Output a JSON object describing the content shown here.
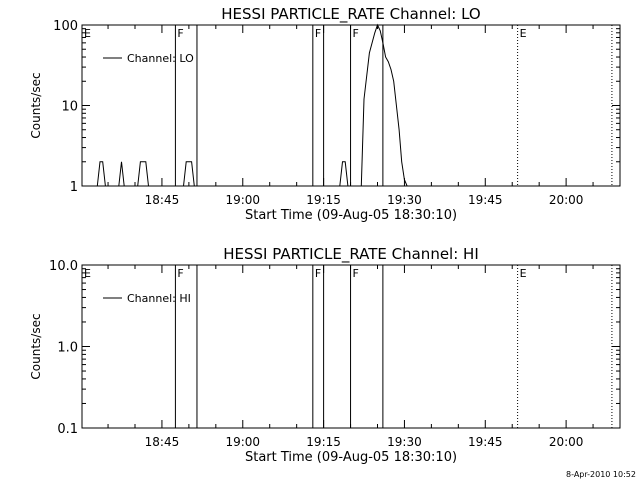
{
  "footer": {
    "timestamp": "8-Apr-2010 10:52"
  },
  "chart_data": [
    {
      "type": "line",
      "title": "HESSI PARTICLE_RATE Channel: LO",
      "xlabel": "Start Time (09-Aug-05 18:30:10)",
      "ylabel": "Counts/sec",
      "xlim": [
        "18:30:10",
        "20:10:00"
      ],
      "ylim": [
        1,
        100
      ],
      "log_y": true,
      "x_ticks": [
        "18:45",
        "19:00",
        "19:15",
        "19:30",
        "19:45",
        "20:00"
      ],
      "y_ticks": [
        "1",
        "10",
        "100"
      ],
      "legend": {
        "position": "top-left",
        "entries": [
          "Channel: LO"
        ]
      },
      "grid": false,
      "series": [
        {
          "name": "Channel: LO",
          "x": [
            "18:30:10",
            "18:33:00",
            "18:33:30",
            "18:34:00",
            "18:34:30",
            "18:35:00",
            "18:37:00",
            "18:37:30",
            "18:38:00",
            "18:40:30",
            "18:41:00",
            "18:42:00",
            "18:42:30",
            "18:44:00",
            "18:49:00",
            "18:49:30",
            "18:50:30",
            "18:51:00",
            "19:18:00",
            "19:18:30",
            "19:19:00",
            "19:19:30",
            "19:22:00",
            "19:22:30",
            "19:23:30",
            "19:24:30",
            "19:25:00",
            "19:25:30",
            "19:26:00",
            "19:26:30",
            "19:27:00",
            "19:27:30",
            "19:28:00",
            "19:28:30",
            "19:29:00",
            "19:29:30",
            "19:30:00",
            "19:30:30",
            "19:31:00"
          ],
          "y": [
            1,
            1,
            2,
            2,
            1,
            1,
            1,
            2,
            1,
            1,
            2,
            2,
            1,
            1,
            1,
            2,
            2,
            1,
            1,
            2,
            2,
            1,
            1,
            12,
            45,
            80,
            100,
            85,
            60,
            40,
            35,
            28,
            20,
            10,
            5,
            2,
            1.2,
            1,
            1
          ]
        }
      ],
      "markers": [
        {
          "label": "E",
          "time": "18:30:10",
          "style": "solid"
        },
        {
          "label": "F",
          "time": "18:47:30",
          "style": "solid"
        },
        {
          "label": "",
          "time": "18:51:30",
          "style": "solid"
        },
        {
          "label": "F",
          "time": "19:13:00",
          "style": "solid"
        },
        {
          "label": "",
          "time": "19:15:00",
          "style": "solid"
        },
        {
          "label": "F",
          "time": "19:20:00",
          "style": "solid"
        },
        {
          "label": "",
          "time": "19:26:00",
          "style": "solid"
        },
        {
          "label": "E",
          "time": "19:51:00",
          "style": "dotted"
        },
        {
          "label": "",
          "time": "20:08:30",
          "style": "dotted"
        }
      ]
    },
    {
      "type": "line",
      "title": "HESSI PARTICLE_RATE Channel: HI",
      "xlabel": "Start Time (09-Aug-05 18:30:10)",
      "ylabel": "Counts/sec",
      "xlim": [
        "18:30:10",
        "20:10:00"
      ],
      "ylim": [
        0.1,
        10
      ],
      "log_y": true,
      "x_ticks": [
        "18:45",
        "19:00",
        "19:15",
        "19:30",
        "19:45",
        "20:00"
      ],
      "y_ticks": [
        "0.1",
        "1.0",
        "10.0"
      ],
      "legend": {
        "position": "top-left",
        "entries": [
          "Channel: HI"
        ]
      },
      "grid": false,
      "series": [
        {
          "name": "Channel: HI",
          "x": [],
          "y": []
        }
      ],
      "markers": [
        {
          "label": "E",
          "time": "18:30:10",
          "style": "solid"
        },
        {
          "label": "F",
          "time": "18:47:30",
          "style": "solid"
        },
        {
          "label": "",
          "time": "18:51:30",
          "style": "solid"
        },
        {
          "label": "F",
          "time": "19:13:00",
          "style": "solid"
        },
        {
          "label": "",
          "time": "19:15:00",
          "style": "solid"
        },
        {
          "label": "F",
          "time": "19:20:00",
          "style": "solid"
        },
        {
          "label": "",
          "time": "19:26:00",
          "style": "solid"
        },
        {
          "label": "E",
          "time": "19:51:00",
          "style": "dotted"
        },
        {
          "label": "",
          "time": "20:08:30",
          "style": "dotted"
        }
      ]
    }
  ]
}
